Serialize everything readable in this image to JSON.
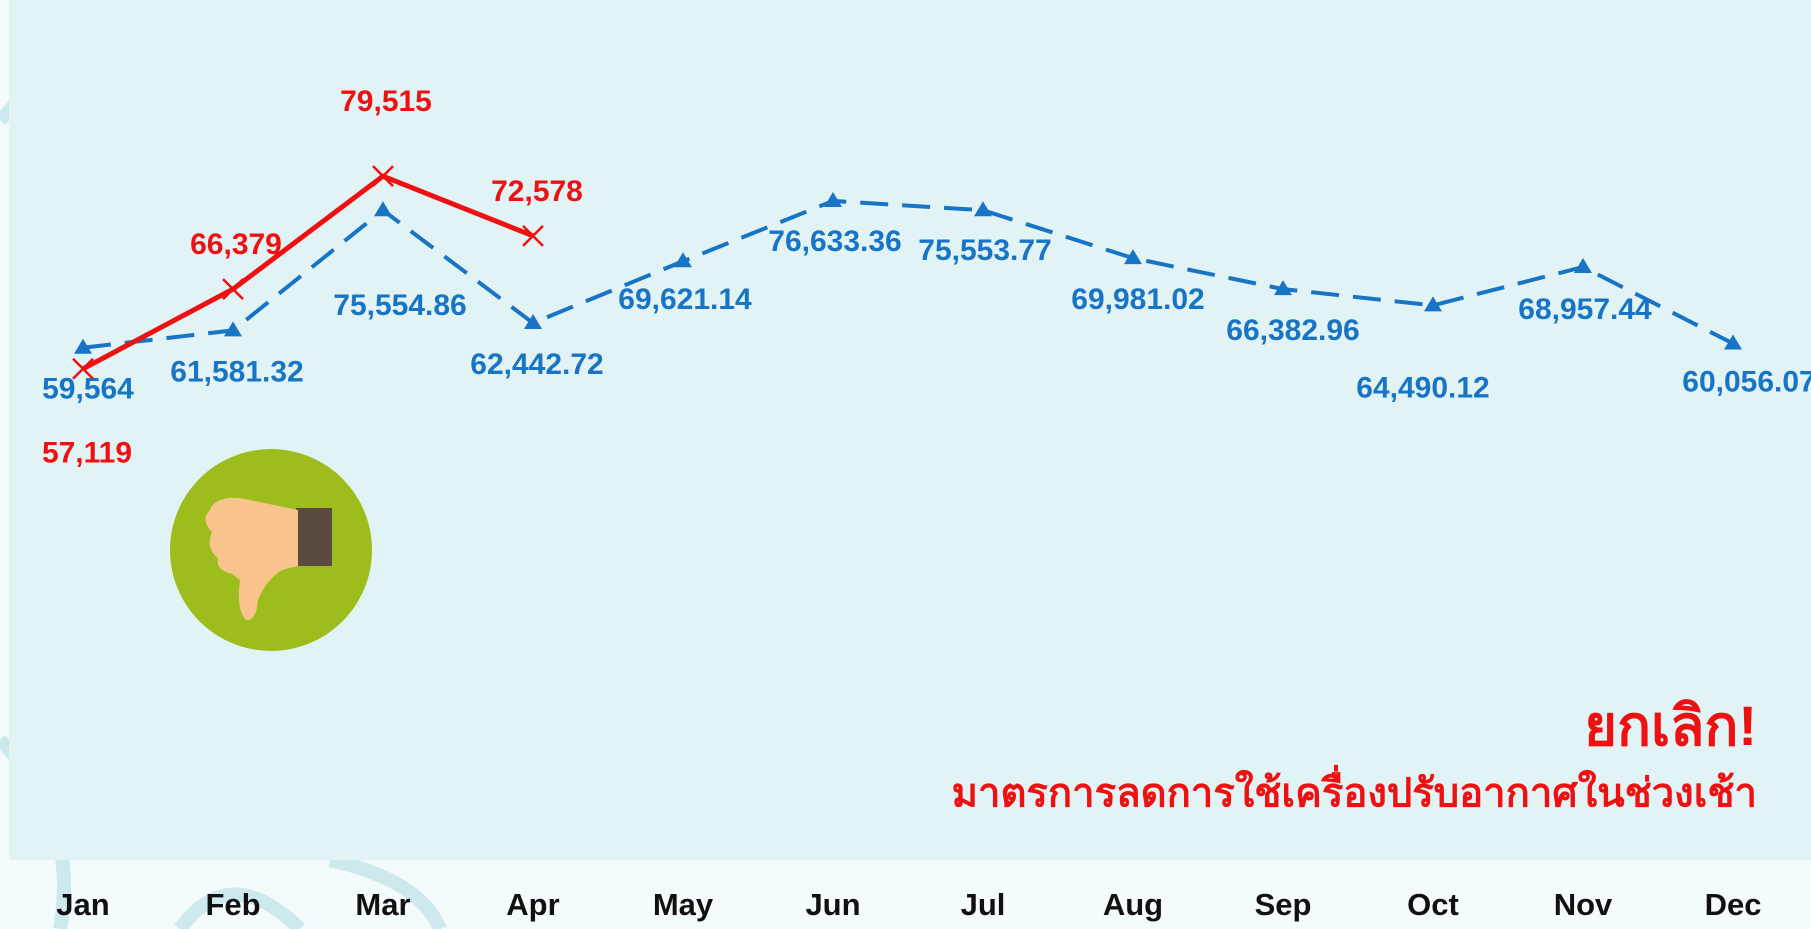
{
  "chart_data": {
    "type": "line",
    "categories": [
      "Jan",
      "Feb",
      "Mar",
      "Apr",
      "May",
      "Jun",
      "Jul",
      "Aug",
      "Sep",
      "Oct",
      "Nov",
      "Dec"
    ],
    "ylim": [
      0,
      100000
    ],
    "series": [
      {
        "color": "#1874c4",
        "dash": true,
        "marker": "triangle",
        "values": [
          59564,
          61581.32,
          75554.86,
          62442.72,
          69621.14,
          76633.36,
          75553.77,
          69981.02,
          66382.96,
          64490.12,
          68957.44,
          60056.07
        ],
        "value_labels": [
          "59,564",
          "61,581.32",
          "75,554.86",
          "62,442.72",
          "69,621.14",
          "76,633.36",
          "75,553.77",
          "69,981.02",
          "66,382.96",
          "64,490.12",
          "68,957.44",
          "60,056.07"
        ]
      },
      {
        "color": "#ee1111",
        "dash": false,
        "marker": "x",
        "values": [
          57119,
          66379,
          79515,
          72578,
          null,
          null,
          null,
          null,
          null,
          null,
          null,
          null
        ],
        "value_labels": [
          "57,119",
          "66,379",
          "79,515",
          "72,578",
          null,
          null,
          null,
          null,
          null,
          null,
          null,
          null
        ]
      }
    ],
    "annotations": [
      "ยกเลิก!",
      "มาตรการลดการใช้เครื่องปรับอากาศในช่วงเช้า"
    ]
  }
}
